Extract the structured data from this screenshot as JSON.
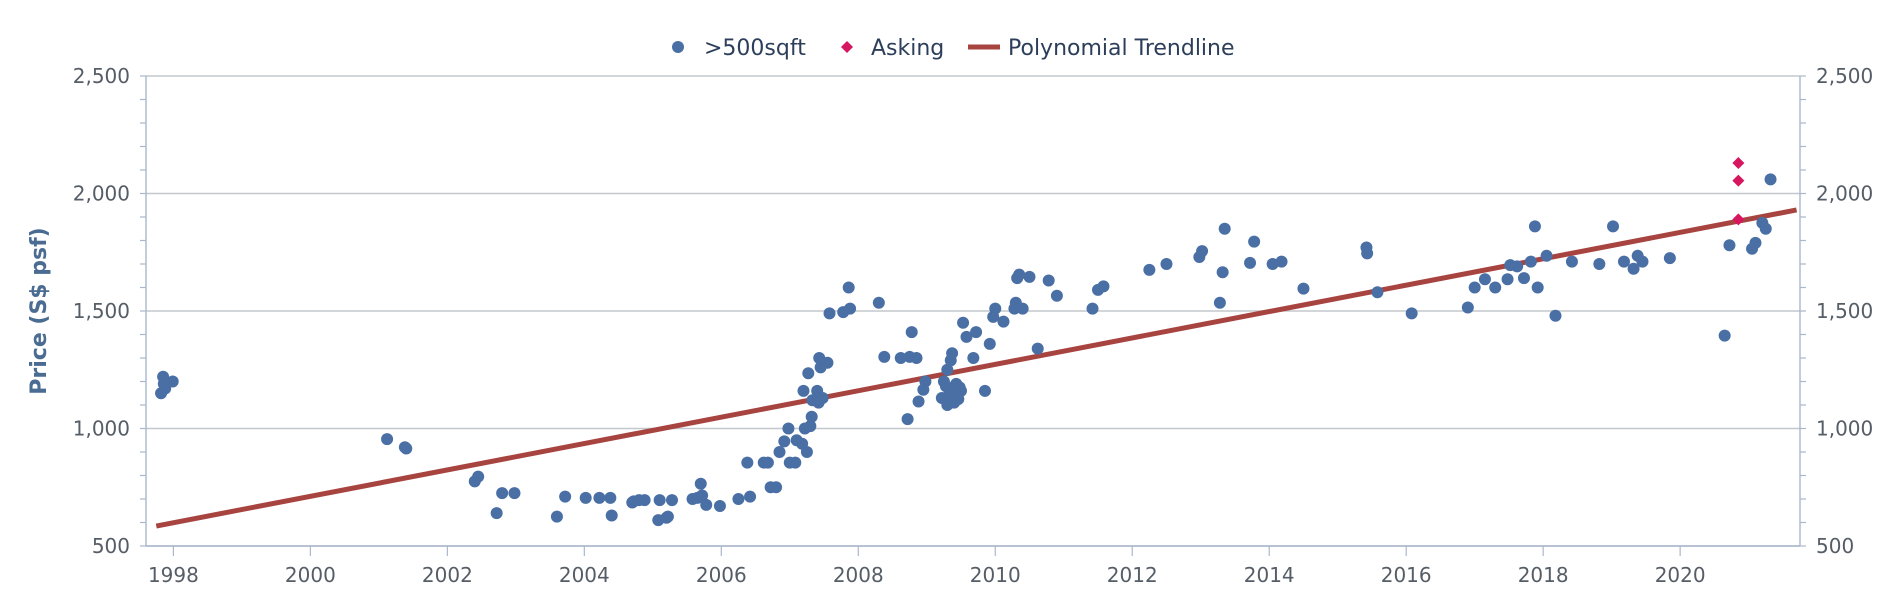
{
  "chart_data": {
    "type": "scatter",
    "xlim": [
      1997.6,
      2021.75
    ],
    "ylim": [
      500,
      2500
    ],
    "x_ticks": [
      "1998",
      "2000",
      "2002",
      "2004",
      "2006",
      "2008",
      "2010",
      "2012",
      "2014",
      "2016",
      "2018",
      "2020"
    ],
    "y_ticks": [
      "500",
      "1,000",
      "1,500",
      "2,000",
      "2,500"
    ],
    "y2_ticks": [
      "500",
      "1,000",
      "1,500",
      "2,000",
      "2,500"
    ],
    "ylabel": "Price (S$ psf)",
    "grid": true,
    "legend_position": "top-center",
    "legend": [
      {
        "label": ">500sqft",
        "symbol": "circle",
        "color": "#4a6fa5"
      },
      {
        "label": "Asking",
        "symbol": "diamond",
        "color": "#d6175f"
      },
      {
        "label": "Polynomial Trendline",
        "symbol": "line",
        "color": "#a84440"
      }
    ],
    "series": [
      {
        "name": ">500sqft",
        "marker": "circle",
        "color": "#4a6fa5",
        "points": [
          [
            1997.85,
            1220
          ],
          [
            1997.82,
            1150
          ],
          [
            1997.88,
            1170
          ],
          [
            1997.86,
            1190
          ],
          [
            1997.99,
            1200
          ],
          [
            2001.12,
            955
          ],
          [
            2001.38,
            920
          ],
          [
            2001.4,
            915
          ],
          [
            2002.4,
            775
          ],
          [
            2002.45,
            795
          ],
          [
            2002.72,
            640
          ],
          [
            2002.8,
            725
          ],
          [
            2002.98,
            725
          ],
          [
            2003.6,
            625
          ],
          [
            2003.72,
            710
          ],
          [
            2004.02,
            705
          ],
          [
            2004.22,
            705
          ],
          [
            2004.38,
            705
          ],
          [
            2004.4,
            630
          ],
          [
            2004.7,
            685
          ],
          [
            2004.72,
            690
          ],
          [
            2004.8,
            695
          ],
          [
            2004.88,
            695
          ],
          [
            2005.1,
            695
          ],
          [
            2005.08,
            610
          ],
          [
            2005.2,
            620
          ],
          [
            2005.22,
            625
          ],
          [
            2005.28,
            695
          ],
          [
            2005.58,
            700
          ],
          [
            2005.65,
            705
          ],
          [
            2005.7,
            765
          ],
          [
            2005.72,
            715
          ],
          [
            2005.78,
            675
          ],
          [
            2005.98,
            670
          ],
          [
            2006.25,
            700
          ],
          [
            2006.38,
            855
          ],
          [
            2006.42,
            710
          ],
          [
            2006.62,
            855
          ],
          [
            2006.68,
            855
          ],
          [
            2006.72,
            750
          ],
          [
            2006.8,
            750
          ],
          [
            2006.85,
            900
          ],
          [
            2006.92,
            945
          ],
          [
            2006.98,
            1000
          ],
          [
            2007.0,
            855
          ],
          [
            2007.08,
            855
          ],
          [
            2007.1,
            950
          ],
          [
            2007.18,
            935
          ],
          [
            2007.2,
            1160
          ],
          [
            2007.22,
            1000
          ],
          [
            2007.25,
            900
          ],
          [
            2007.27,
            1235
          ],
          [
            2007.3,
            1010
          ],
          [
            2007.32,
            1050
          ],
          [
            2007.33,
            1120
          ],
          [
            2007.4,
            1160
          ],
          [
            2007.42,
            1110
          ],
          [
            2007.43,
            1300
          ],
          [
            2007.45,
            1260
          ],
          [
            2007.48,
            1130
          ],
          [
            2007.55,
            1280
          ],
          [
            2007.58,
            1490
          ],
          [
            2007.78,
            1495
          ],
          [
            2007.86,
            1600
          ],
          [
            2007.88,
            1510
          ],
          [
            2008.3,
            1535
          ],
          [
            2008.38,
            1305
          ],
          [
            2008.62,
            1300
          ],
          [
            2008.72,
            1040
          ],
          [
            2008.75,
            1305
          ],
          [
            2008.78,
            1410
          ],
          [
            2008.85,
            1300
          ],
          [
            2008.88,
            1115
          ],
          [
            2008.95,
            1165
          ],
          [
            2008.98,
            1200
          ],
          [
            2009.22,
            1130
          ],
          [
            2009.25,
            1200
          ],
          [
            2009.28,
            1180
          ],
          [
            2009.3,
            1250
          ],
          [
            2009.3,
            1100
          ],
          [
            2009.33,
            1145
          ],
          [
            2009.35,
            1290
          ],
          [
            2009.36,
            1170
          ],
          [
            2009.37,
            1320
          ],
          [
            2009.38,
            1120
          ],
          [
            2009.4,
            1110
          ],
          [
            2009.42,
            1140
          ],
          [
            2009.43,
            1190
          ],
          [
            2009.45,
            1170
          ],
          [
            2009.46,
            1125
          ],
          [
            2009.48,
            1175
          ],
          [
            2009.5,
            1160
          ],
          [
            2009.53,
            1450
          ],
          [
            2009.58,
            1390
          ],
          [
            2009.68,
            1300
          ],
          [
            2009.72,
            1410
          ],
          [
            2009.85,
            1160
          ],
          [
            2009.92,
            1360
          ],
          [
            2009.97,
            1475
          ],
          [
            2010.0,
            1510
          ],
          [
            2010.12,
            1455
          ],
          [
            2010.28,
            1510
          ],
          [
            2010.3,
            1535
          ],
          [
            2010.32,
            1640
          ],
          [
            2010.35,
            1655
          ],
          [
            2010.4,
            1510
          ],
          [
            2010.5,
            1645
          ],
          [
            2010.62,
            1340
          ],
          [
            2010.78,
            1630
          ],
          [
            2010.9,
            1565
          ],
          [
            2011.42,
            1510
          ],
          [
            2011.5,
            1590
          ],
          [
            2011.58,
            1605
          ],
          [
            2012.25,
            1675
          ],
          [
            2012.5,
            1700
          ],
          [
            2012.98,
            1730
          ],
          [
            2013.02,
            1755
          ],
          [
            2013.28,
            1535
          ],
          [
            2013.32,
            1665
          ],
          [
            2013.35,
            1850
          ],
          [
            2013.72,
            1705
          ],
          [
            2013.78,
            1795
          ],
          [
            2014.05,
            1700
          ],
          [
            2014.18,
            1710
          ],
          [
            2014.5,
            1595
          ],
          [
            2015.42,
            1770
          ],
          [
            2015.43,
            1745
          ],
          [
            2015.58,
            1580
          ],
          [
            2016.08,
            1490
          ],
          [
            2016.9,
            1515
          ],
          [
            2017.0,
            1600
          ],
          [
            2017.15,
            1635
          ],
          [
            2017.3,
            1600
          ],
          [
            2017.48,
            1635
          ],
          [
            2017.52,
            1695
          ],
          [
            2017.62,
            1690
          ],
          [
            2017.72,
            1640
          ],
          [
            2017.82,
            1710
          ],
          [
            2017.88,
            1860
          ],
          [
            2017.92,
            1600
          ],
          [
            2018.05,
            1735
          ],
          [
            2018.18,
            1480
          ],
          [
            2018.42,
            1710
          ],
          [
            2018.82,
            1700
          ],
          [
            2019.02,
            1860
          ],
          [
            2019.18,
            1710
          ],
          [
            2019.32,
            1680
          ],
          [
            2019.38,
            1735
          ],
          [
            2019.45,
            1710
          ],
          [
            2019.85,
            1725
          ],
          [
            2020.65,
            1395
          ],
          [
            2020.72,
            1780
          ],
          [
            2021.05,
            1765
          ],
          [
            2021.1,
            1790
          ],
          [
            2021.2,
            1875
          ],
          [
            2021.25,
            1850
          ],
          [
            2021.32,
            2060
          ]
        ]
      },
      {
        "name": "Asking",
        "marker": "diamond",
        "color": "#d6175f",
        "points": [
          [
            2020.85,
            2130
          ],
          [
            2020.85,
            2055
          ],
          [
            2020.85,
            1890
          ]
        ]
      },
      {
        "name": "Polynomial Trendline",
        "marker": "line",
        "color": "#a84440",
        "points": [
          [
            1997.75,
            585
          ],
          [
            2021.7,
            1930
          ]
        ]
      }
    ]
  }
}
